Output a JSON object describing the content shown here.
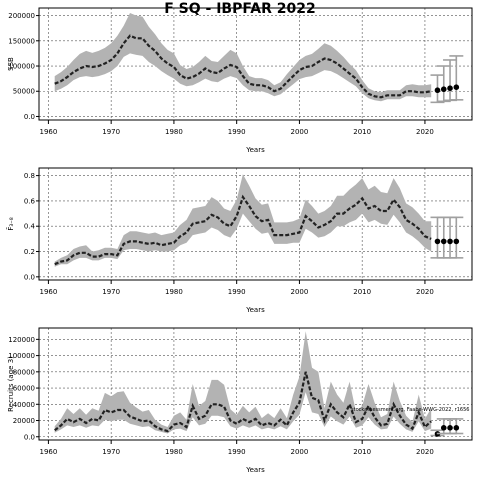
{
  "title": "F SQ - IBPFAR 2022",
  "watermark": "stockassessment.org, Faabe-WWG-2022, r1656",
  "colors": {
    "band": "#b3b3b3",
    "line": "#222222",
    "points": "#000000",
    "bars": "#a0a0a0",
    "grid": "#555555"
  },
  "chart_data": [
    {
      "type": "line",
      "xlabel": "Years",
      "ylabel": "SSB",
      "xlim": [
        1958.5,
        2027.5
      ],
      "ylim": [
        -7000,
        215000
      ],
      "xticks": [
        1960,
        1970,
        1980,
        1990,
        2000,
        2010,
        2020
      ],
      "yticks": [
        0,
        50000,
        100000,
        150000,
        200000
      ],
      "grid": true,
      "x": [
        1961,
        1962,
        1963,
        1964,
        1965,
        1966,
        1967,
        1968,
        1969,
        1970,
        1971,
        1972,
        1973,
        1974,
        1975,
        1976,
        1977,
        1978,
        1979,
        1980,
        1981,
        1982,
        1983,
        1984,
        1985,
        1986,
        1987,
        1988,
        1989,
        1990,
        1991,
        1992,
        1993,
        1994,
        1995,
        1996,
        1997,
        1998,
        1999,
        2000,
        2001,
        2002,
        2003,
        2004,
        2005,
        2006,
        2007,
        2008,
        2009,
        2010,
        2011,
        2012,
        2013,
        2014,
        2015,
        2016,
        2017,
        2018,
        2019,
        2020,
        2021
      ],
      "estimate": [
        65000,
        70000,
        78000,
        88000,
        95000,
        100000,
        98000,
        100000,
        105000,
        112000,
        125000,
        145000,
        160000,
        155000,
        155000,
        140000,
        130000,
        115000,
        105000,
        98000,
        82000,
        75000,
        78000,
        85000,
        95000,
        88000,
        86000,
        95000,
        102000,
        98000,
        80000,
        65000,
        62000,
        62000,
        58000,
        50000,
        55000,
        68000,
        80000,
        92000,
        98000,
        100000,
        108000,
        115000,
        112000,
        105000,
        95000,
        85000,
        75000,
        58000,
        45000,
        40000,
        38000,
        42000,
        42000,
        42000,
        50000,
        50000,
        48000,
        48000,
        50000
      ],
      "lower": [
        50000,
        55000,
        62000,
        72000,
        78000,
        80000,
        78000,
        80000,
        84000,
        90000,
        100000,
        118000,
        125000,
        122000,
        120000,
        108000,
        100000,
        90000,
        82000,
        75000,
        65000,
        60000,
        62000,
        68000,
        75000,
        70000,
        68000,
        75000,
        80000,
        76000,
        62000,
        52000,
        50000,
        50000,
        46000,
        40000,
        44000,
        54000,
        64000,
        74000,
        78000,
        80000,
        86000,
        92000,
        90000,
        84000,
        76000,
        68000,
        60000,
        46000,
        36000,
        32000,
        30000,
        34000,
        34000,
        34000,
        40000,
        40000,
        38000,
        38000,
        38000
      ],
      "upper": [
        80000,
        88000,
        98000,
        112000,
        124000,
        130000,
        126000,
        130000,
        136000,
        145000,
        160000,
        180000,
        205000,
        200000,
        198000,
        178000,
        163000,
        145000,
        132000,
        125000,
        102000,
        94000,
        98000,
        108000,
        120000,
        110000,
        108000,
        120000,
        132000,
        125000,
        100000,
        80000,
        76000,
        76000,
        72000,
        62000,
        68000,
        84000,
        98000,
        112000,
        120000,
        124000,
        134000,
        145000,
        140000,
        130000,
        118000,
        104000,
        92000,
        72000,
        56000,
        50000,
        48000,
        52000,
        52000,
        52000,
        62000,
        64000,
        62000,
        62000,
        64000
      ],
      "forecast": [
        {
          "x": 2022,
          "y": 52000,
          "lo": 28000,
          "hi": 82000
        },
        {
          "x": 2023,
          "y": 54000,
          "lo": 30000,
          "hi": 100000
        },
        {
          "x": 2024,
          "y": 56000,
          "lo": 32000,
          "hi": 112000
        },
        {
          "x": 2025,
          "y": 58000,
          "lo": 33000,
          "hi": 120000
        }
      ]
    },
    {
      "type": "line",
      "xlabel": "Years",
      "ylabel": "F̄₃₋₈",
      "xlim": [
        1958.5,
        2027.5
      ],
      "ylim": [
        -0.025,
        0.86
      ],
      "xticks": [
        1960,
        1970,
        1980,
        1990,
        2000,
        2010,
        2020
      ],
      "yticks": [
        0.0,
        0.2,
        0.4,
        0.6,
        0.8
      ],
      "grid": true,
      "x": [
        1961,
        1962,
        1963,
        1964,
        1965,
        1966,
        1967,
        1968,
        1969,
        1970,
        1971,
        1972,
        1973,
        1974,
        1975,
        1976,
        1977,
        1978,
        1979,
        1980,
        1981,
        1982,
        1983,
        1984,
        1985,
        1986,
        1987,
        1988,
        1989,
        1990,
        1991,
        1992,
        1993,
        1994,
        1995,
        1996,
        1997,
        1998,
        1999,
        2000,
        2001,
        2002,
        2003,
        2004,
        2005,
        2006,
        2007,
        2008,
        2009,
        2010,
        2011,
        2012,
        2013,
        2014,
        2015,
        2016,
        2017,
        2018,
        2019,
        2020,
        2021
      ],
      "estimate": [
        0.1,
        0.12,
        0.13,
        0.17,
        0.19,
        0.19,
        0.16,
        0.16,
        0.18,
        0.18,
        0.17,
        0.26,
        0.28,
        0.28,
        0.27,
        0.26,
        0.27,
        0.25,
        0.26,
        0.27,
        0.32,
        0.35,
        0.42,
        0.43,
        0.44,
        0.49,
        0.47,
        0.42,
        0.4,
        0.48,
        0.63,
        0.56,
        0.48,
        0.44,
        0.45,
        0.33,
        0.33,
        0.33,
        0.34,
        0.35,
        0.48,
        0.44,
        0.39,
        0.41,
        0.44,
        0.5,
        0.5,
        0.54,
        0.57,
        0.62,
        0.54,
        0.56,
        0.52,
        0.52,
        0.61,
        0.55,
        0.45,
        0.42,
        0.38,
        0.32,
        0.3
      ],
      "lower": [
        0.08,
        0.1,
        0.1,
        0.13,
        0.15,
        0.15,
        0.13,
        0.13,
        0.15,
        0.15,
        0.14,
        0.21,
        0.22,
        0.22,
        0.21,
        0.2,
        0.21,
        0.2,
        0.2,
        0.21,
        0.25,
        0.27,
        0.33,
        0.34,
        0.35,
        0.39,
        0.37,
        0.33,
        0.31,
        0.38,
        0.5,
        0.44,
        0.38,
        0.34,
        0.35,
        0.26,
        0.26,
        0.26,
        0.27,
        0.27,
        0.38,
        0.35,
        0.31,
        0.32,
        0.35,
        0.4,
        0.4,
        0.43,
        0.45,
        0.5,
        0.43,
        0.45,
        0.42,
        0.41,
        0.49,
        0.43,
        0.35,
        0.32,
        0.28,
        0.23,
        0.2
      ],
      "upper": [
        0.12,
        0.15,
        0.17,
        0.22,
        0.24,
        0.25,
        0.2,
        0.21,
        0.23,
        0.23,
        0.22,
        0.33,
        0.36,
        0.36,
        0.35,
        0.34,
        0.35,
        0.33,
        0.34,
        0.35,
        0.41,
        0.45,
        0.54,
        0.55,
        0.56,
        0.63,
        0.6,
        0.54,
        0.52,
        0.61,
        0.81,
        0.72,
        0.62,
        0.57,
        0.58,
        0.43,
        0.43,
        0.43,
        0.44,
        0.46,
        0.61,
        0.56,
        0.5,
        0.52,
        0.56,
        0.64,
        0.64,
        0.69,
        0.73,
        0.78,
        0.69,
        0.72,
        0.67,
        0.66,
        0.78,
        0.7,
        0.58,
        0.55,
        0.5,
        0.44,
        0.44
      ],
      "forecast": [
        {
          "x": 2022,
          "y": 0.28,
          "lo": 0.15,
          "hi": 0.47
        },
        {
          "x": 2023,
          "y": 0.28,
          "lo": 0.15,
          "hi": 0.47
        },
        {
          "x": 2024,
          "y": 0.28,
          "lo": 0.15,
          "hi": 0.47
        },
        {
          "x": 2025,
          "y": 0.28,
          "lo": 0.15,
          "hi": 0.47
        }
      ]
    },
    {
      "type": "line",
      "xlabel": "Years",
      "ylabel": "Recruits (age 3)",
      "xlim": [
        1958.5,
        2027.5
      ],
      "ylim": [
        -4000,
        134000
      ],
      "xticks": [
        1960,
        1970,
        1980,
        1990,
        2000,
        2010,
        2020
      ],
      "yticks": [
        0,
        20000,
        40000,
        60000,
        80000,
        100000,
        120000
      ],
      "grid": true,
      "x": [
        1961,
        1962,
        1963,
        1964,
        1965,
        1966,
        1967,
        1968,
        1969,
        1970,
        1971,
        1972,
        1973,
        1974,
        1975,
        1976,
        1977,
        1978,
        1979,
        1980,
        1981,
        1982,
        1983,
        1984,
        1985,
        1986,
        1987,
        1988,
        1989,
        1990,
        1991,
        1992,
        1993,
        1994,
        1995,
        1996,
        1997,
        1998,
        1999,
        2000,
        2001,
        2002,
        2003,
        2004,
        2005,
        2006,
        2007,
        2008,
        2009,
        2010,
        2011,
        2012,
        2013,
        2014,
        2015,
        2016,
        2017,
        2018,
        2019,
        2020,
        2021
      ],
      "estimate": [
        8000,
        14000,
        22000,
        18000,
        22000,
        17000,
        22000,
        20000,
        33000,
        30000,
        33000,
        33000,
        25000,
        22000,
        19000,
        20000,
        13000,
        9000,
        7000,
        15000,
        17000,
        12000,
        38000,
        22000,
        26000,
        40000,
        40000,
        37000,
        20000,
        16000,
        22000,
        18000,
        22000,
        14000,
        17000,
        14000,
        21000,
        14000,
        30000,
        42000,
        80000,
        48000,
        45000,
        20000,
        40000,
        30000,
        24000,
        40000,
        18000,
        22000,
        38000,
        24000,
        14000,
        16000,
        40000,
        26000,
        15000,
        10000,
        30000,
        12000,
        19000
      ],
      "lower": [
        5000,
        9000,
        14000,
        12000,
        14000,
        11000,
        14000,
        13000,
        21000,
        19000,
        21000,
        21000,
        16000,
        14000,
        12000,
        13000,
        8000,
        6000,
        4000,
        9000,
        10000,
        7000,
        24000,
        14000,
        16000,
        26000,
        26000,
        24000,
        13000,
        10000,
        14000,
        11000,
        14000,
        9000,
        11000,
        9000,
        13000,
        9000,
        19000,
        27000,
        55000,
        30000,
        28000,
        12000,
        25000,
        19000,
        15000,
        25000,
        11000,
        14000,
        24000,
        15000,
        9000,
        10000,
        25000,
        16000,
        9000,
        6000,
        19000,
        7000,
        10000
      ],
      "upper": [
        13000,
        22000,
        35000,
        28000,
        35000,
        27000,
        35000,
        32000,
        54000,
        50000,
        55000,
        56000,
        42000,
        36000,
        31000,
        33000,
        21000,
        15000,
        12000,
        26000,
        30000,
        21000,
        65000,
        38000,
        44000,
        70000,
        70000,
        64000,
        34000,
        27000,
        38000,
        30000,
        37000,
        23000,
        29000,
        23000,
        35000,
        23000,
        52000,
        74000,
        130000,
        85000,
        80000,
        35000,
        68000,
        52000,
        42000,
        68000,
        31000,
        38000,
        65000,
        42000,
        24000,
        28000,
        68000,
        44000,
        26000,
        18000,
        52000,
        22000,
        35000
      ],
      "forecast": [
        {
          "x": 2022,
          "y": 3500,
          "lo": 1500,
          "hi": 8000
        },
        {
          "x": 2023,
          "y": 11000,
          "lo": 4000,
          "hi": 22000
        },
        {
          "x": 2024,
          "y": 11000,
          "lo": 4000,
          "hi": 22000
        },
        {
          "x": 2025,
          "y": 11000,
          "lo": 4000,
          "hi": 22000
        }
      ]
    }
  ]
}
